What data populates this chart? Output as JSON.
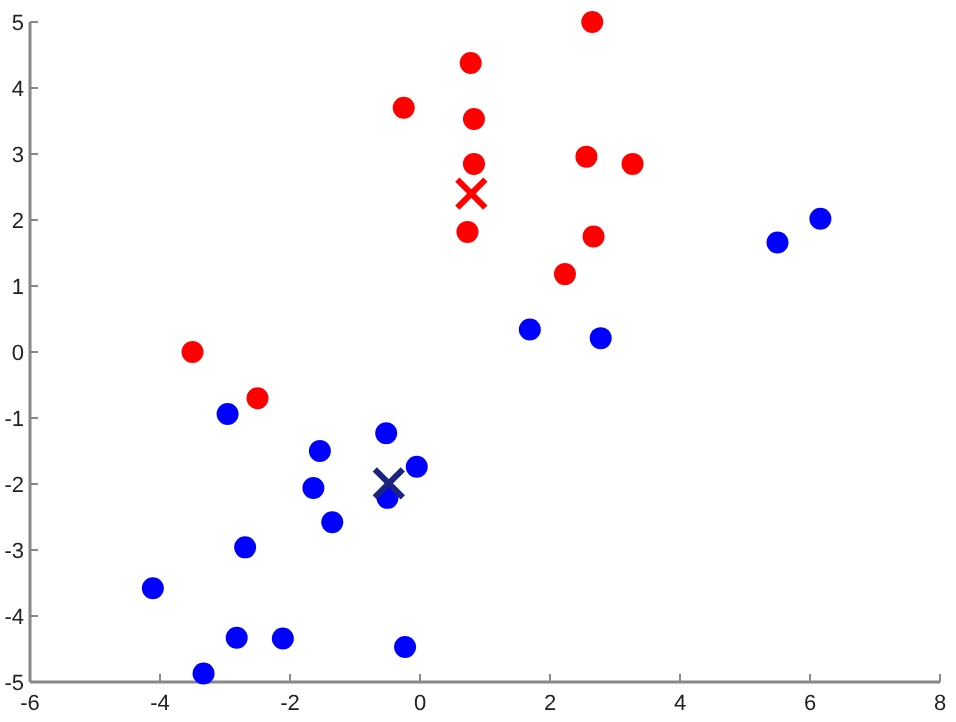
{
  "chart_data": {
    "type": "scatter",
    "xlim": [
      -6,
      8
    ],
    "ylim": [
      -5,
      5
    ],
    "xticks": [
      -6,
      -4,
      -2,
      0,
      2,
      4,
      6,
      8
    ],
    "yticks": [
      -5,
      -4,
      -3,
      -2,
      -1,
      0,
      1,
      2,
      3,
      4,
      5
    ],
    "grid": false,
    "marker": "circle",
    "series": [
      {
        "color": "#ff0000",
        "x": [
          2.65,
          0.78,
          -0.25,
          0.83,
          0.83,
          2.56,
          3.27,
          0.73,
          2.67,
          2.23,
          -3.5,
          -2.5
        ],
        "values": [
          5.0,
          4.38,
          3.7,
          3.53,
          2.85,
          2.96,
          2.85,
          1.82,
          1.75,
          1.18,
          0.0,
          -0.7
        ]
      },
      {
        "color": "#0000ff",
        "x": [
          1.69,
          2.78,
          5.5,
          6.16,
          -2.96,
          -1.54,
          -0.52,
          -0.05,
          -1.64,
          -0.5,
          -1.35,
          -2.69,
          -4.11,
          -2.82,
          -2.11,
          -0.23,
          -3.33
        ],
        "values": [
          0.34,
          0.21,
          1.66,
          2.02,
          -0.94,
          -1.5,
          -1.23,
          -1.74,
          -2.06,
          -2.21,
          -2.58,
          -2.96,
          -3.58,
          -4.33,
          -4.34,
          -4.47,
          -4.87
        ]
      },
      {
        "color": "#ff0000",
        "marker": "cross",
        "x": [
          0.79
        ],
        "values": [
          2.4
        ]
      },
      {
        "color": "#1a237e",
        "marker": "cross",
        "x": [
          -0.48
        ],
        "values": [
          -1.99
        ]
      }
    ]
  }
}
